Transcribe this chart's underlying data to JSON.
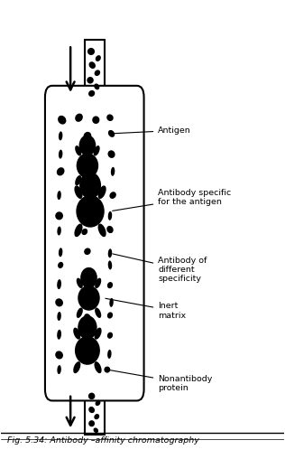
{
  "title": "Fig. 5.34: Antibody –affinity chromatography",
  "fig_width": 3.16,
  "fig_height": 5.08,
  "bg_color": "#ffffff",
  "labels": {
    "antigen": "Antigen",
    "antibody_specific": "Antibody specific\nfor the antigen",
    "antibody_different": "Antibody of\ndifferent\nspecificity",
    "inert_matrix": "Inert\nmatrix",
    "nonantibody": "Nonantibody\nprotein"
  }
}
